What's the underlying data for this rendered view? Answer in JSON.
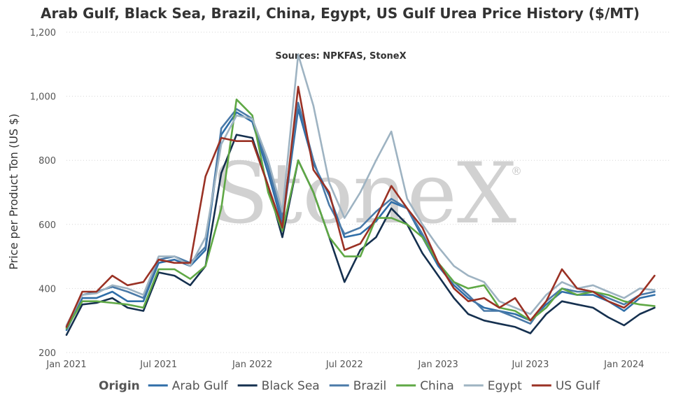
{
  "chart_data": {
    "type": "line",
    "title": "Arab Gulf, Black Sea, Brazil, China, Egypt, US Gulf Urea Price History ($/MT)",
    "subtitle": "Sources: NPKFAS, StoneX",
    "ylabel": "Price per Product Ton (US $)",
    "ylim": [
      200,
      1200
    ],
    "yticks": [
      200,
      400,
      600,
      800,
      1000,
      1200
    ],
    "ytick_labels": [
      "200",
      "400",
      "600",
      "800",
      "1,000",
      "1,200"
    ],
    "xlim": [
      "2021-01-01",
      "2024-04-01"
    ],
    "xticks": [
      "2021-01-01",
      "2021-07-01",
      "2022-01-01",
      "2022-07-01",
      "2023-01-01",
      "2023-07-01",
      "2024-01-01"
    ],
    "xtick_labels": [
      "Jan 2021",
      "Jul 2021",
      "Jan 2022",
      "Jul 2022",
      "Jan 2023",
      "Jul 2023",
      "Jan 2024"
    ],
    "grid": true,
    "legend": {
      "title": "Origin",
      "position": "bottom"
    },
    "watermark": {
      "text": "StoneX",
      "mark": "®"
    },
    "x": [
      "2021-01-01",
      "2021-02-01",
      "2021-03-01",
      "2021-04-01",
      "2021-05-01",
      "2021-06-01",
      "2021-07-01",
      "2021-08-01",
      "2021-09-01",
      "2021-10-01",
      "2021-11-01",
      "2021-12-01",
      "2022-01-01",
      "2022-02-01",
      "2022-03-01",
      "2022-04-01",
      "2022-05-01",
      "2022-06-01",
      "2022-07-01",
      "2022-08-01",
      "2022-09-01",
      "2022-10-01",
      "2022-11-01",
      "2022-12-01",
      "2023-01-01",
      "2023-02-01",
      "2023-03-01",
      "2023-04-01",
      "2023-05-01",
      "2023-06-01",
      "2023-07-01",
      "2023-08-01",
      "2023-09-01",
      "2023-10-01",
      "2023-11-01",
      "2023-12-01",
      "2024-01-01",
      "2024-02-01",
      "2024-03-01"
    ],
    "series": [
      {
        "name": "Arab Gulf",
        "color": "#2f6ea8",
        "values": [
          270,
          370,
          370,
          390,
          360,
          360,
          480,
          490,
          470,
          520,
          880,
          950,
          920,
          760,
          600,
          960,
          790,
          690,
          560,
          570,
          610,
          670,
          650,
          560,
          470,
          410,
          370,
          340,
          330,
          320,
          300,
          350,
          390,
          380,
          380,
          360,
          330,
          370,
          380
        ]
      },
      {
        "name": "Black Sea",
        "color": "#15304f",
        "values": [
          255,
          350,
          355,
          370,
          340,
          330,
          450,
          440,
          410,
          470,
          760,
          880,
          870,
          720,
          560,
          800,
          700,
          560,
          420,
          520,
          560,
          650,
          600,
          510,
          440,
          370,
          320,
          300,
          290,
          280,
          260,
          320,
          360,
          350,
          340,
          310,
          285,
          320,
          340
        ]
      },
      {
        "name": "Brazil",
        "color": "#4a7aa8",
        "values": [
          280,
          380,
          390,
          405,
          390,
          370,
          490,
          500,
          480,
          530,
          900,
          960,
          930,
          780,
          620,
          980,
          800,
          660,
          570,
          590,
          640,
          680,
          650,
          570,
          480,
          420,
          380,
          330,
          330,
          310,
          290,
          360,
          400,
          390,
          390,
          370,
          350,
          380,
          390
        ]
      },
      {
        "name": "China",
        "color": "#5fa845",
        "values": [
          275,
          360,
          360,
          355,
          350,
          340,
          460,
          460,
          430,
          470,
          650,
          990,
          940,
          700,
          580,
          800,
          700,
          560,
          500,
          500,
          620,
          620,
          600,
          560,
          480,
          420,
          400,
          410,
          340,
          330,
          300,
          340,
          400,
          380,
          390,
          380,
          360,
          350,
          345
        ]
      },
      {
        "name": "Egypt",
        "color": "#9eb3c2",
        "values": [
          285,
          380,
          385,
          410,
          400,
          380,
          500,
          500,
          470,
          560,
          850,
          940,
          930,
          800,
          640,
          1130,
          970,
          730,
          620,
          700,
          800,
          890,
          680,
          600,
          530,
          470,
          440,
          420,
          360,
          340,
          320,
          380,
          420,
          400,
          410,
          390,
          370,
          400,
          395
        ]
      },
      {
        "name": "US Gulf",
        "color": "#9a3124",
        "values": [
          280,
          390,
          390,
          440,
          410,
          420,
          490,
          480,
          480,
          750,
          870,
          860,
          860,
          720,
          590,
          1030,
          770,
          700,
          520,
          540,
          620,
          720,
          650,
          590,
          480,
          400,
          360,
          370,
          340,
          370,
          300,
          360,
          460,
          400,
          390,
          360,
          340,
          380,
          440
        ]
      }
    ]
  }
}
